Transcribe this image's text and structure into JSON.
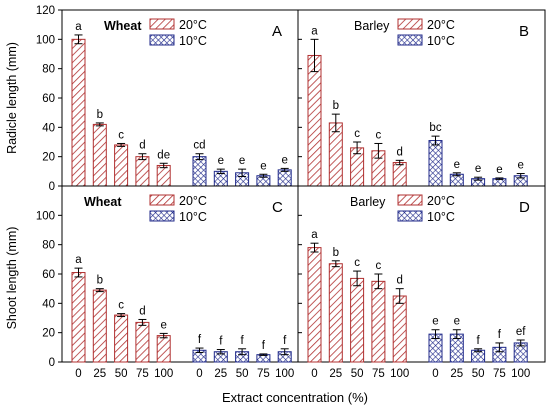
{
  "figure": {
    "xlabel": "Extract concentration (%)",
    "ylabel_top": "Radicle length (mm)",
    "ylabel_bottom": "Shoot length (mm)"
  },
  "colors": {
    "warm": "#b03030",
    "cool": "#202a8a",
    "axis": "#000000"
  },
  "chart_data": [
    {
      "type": "bar",
      "panel": "A",
      "title": "Wheat",
      "ylabel": "Radicle length (mm)",
      "ylim": [
        0,
        120
      ],
      "yticks": [
        0,
        20,
        40,
        60,
        80,
        100,
        120
      ],
      "categories": [
        "0",
        "25",
        "50",
        "75",
        "100"
      ],
      "series": [
        {
          "name": "20°C",
          "pattern": "hatch",
          "values": [
            100,
            42,
            28,
            20,
            14
          ],
          "errors": [
            3,
            1,
            1,
            2,
            1.5
          ],
          "letters": [
            "a",
            "b",
            "c",
            "d",
            "de"
          ]
        },
        {
          "name": "10°C",
          "pattern": "crosshatch",
          "values": [
            20,
            10,
            9,
            7,
            11
          ],
          "errors": [
            2,
            1.5,
            2.5,
            1,
            1
          ],
          "letters": [
            "cd",
            "e",
            "e",
            "e",
            "e"
          ]
        }
      ]
    },
    {
      "type": "bar",
      "panel": "B",
      "title": "Barley",
      "ylabel": "Radicle length (mm)",
      "ylim": [
        0,
        120
      ],
      "yticks": [
        0,
        20,
        40,
        60,
        80,
        100,
        120
      ],
      "categories": [
        "0",
        "25",
        "50",
        "75",
        "100"
      ],
      "series": [
        {
          "name": "20°C",
          "pattern": "hatch",
          "values": [
            89,
            43,
            26,
            24,
            16
          ],
          "errors": [
            11,
            6,
            4,
            5,
            1.5
          ],
          "letters": [
            "a",
            "b",
            "c",
            "c",
            "d"
          ]
        },
        {
          "name": "10°C",
          "pattern": "crosshatch",
          "values": [
            31,
            8,
            5,
            5,
            7
          ],
          "errors": [
            3,
            1,
            1,
            0.5,
            1.5
          ],
          "letters": [
            "bc",
            "e",
            "e",
            "e",
            "e"
          ]
        }
      ]
    },
    {
      "type": "bar",
      "panel": "C",
      "title": "Wheat",
      "ylabel": "Shoot length (mm)",
      "ylim": [
        0,
        120
      ],
      "yticks": [
        0,
        20,
        40,
        60,
        80,
        100
      ],
      "categories": [
        "0",
        "25",
        "50",
        "75",
        "100"
      ],
      "series": [
        {
          "name": "20°C",
          "pattern": "hatch",
          "values": [
            61,
            49,
            32,
            27,
            18
          ],
          "errors": [
            3,
            1,
            1,
            2,
            1.5
          ],
          "letters": [
            "a",
            "b",
            "c",
            "d",
            "e"
          ]
        },
        {
          "name": "10°C",
          "pattern": "crosshatch",
          "values": [
            8,
            7,
            7,
            5,
            7
          ],
          "errors": [
            1.5,
            1.5,
            2,
            0.5,
            2
          ],
          "letters": [
            "f",
            "f",
            "f",
            "f",
            "f"
          ]
        }
      ]
    },
    {
      "type": "bar",
      "panel": "D",
      "title": "Barley",
      "ylabel": "Shoot length (mm)",
      "ylim": [
        0,
        120
      ],
      "yticks": [
        0,
        20,
        40,
        60,
        80,
        100
      ],
      "categories": [
        "0",
        "25",
        "50",
        "75",
        "100"
      ],
      "series": [
        {
          "name": "20°C",
          "pattern": "hatch",
          "values": [
            78,
            67,
            57,
            55,
            45
          ],
          "errors": [
            3,
            2,
            5,
            5,
            5
          ],
          "letters": [
            "a",
            "b",
            "c",
            "c",
            "d"
          ]
        },
        {
          "name": "10°C",
          "pattern": "crosshatch",
          "values": [
            19,
            19,
            8,
            10,
            13
          ],
          "errors": [
            3,
            3,
            1,
            3,
            2
          ],
          "letters": [
            "e",
            "e",
            "f",
            "f",
            "ef"
          ]
        }
      ]
    }
  ]
}
